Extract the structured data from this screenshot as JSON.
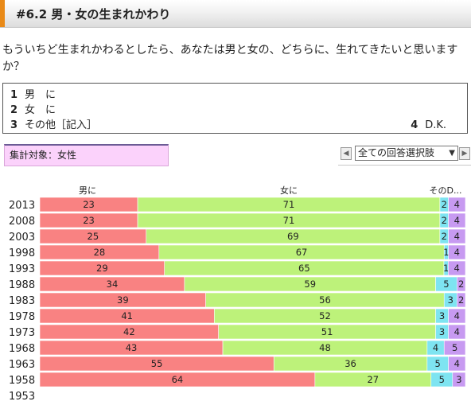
{
  "header": {
    "title": "#6.2 男・女の生まれかわり"
  },
  "question": {
    "text": "もういちど生まれかわるとしたら、あなたは男と女の、どちらに、生れてきたいと思いますか？"
  },
  "options": [
    {
      "num": "1",
      "label": "男　に"
    },
    {
      "num": "2",
      "label": "女　に"
    },
    {
      "num": "3",
      "label": "その他［記入］"
    },
    {
      "num": "4",
      "label": "D.K."
    }
  ],
  "target": {
    "label": "集計対象：女性"
  },
  "selector": {
    "value": "全ての回答選択肢",
    "prev_icon": "arrow-left-icon",
    "next_icon": "arrow-right-icon"
  },
  "colors": {
    "male": "#f98282",
    "female": "#bdf27a",
    "other": "#7ee4f1",
    "dk": "#c79af1",
    "accent": "#e98a18",
    "target_bg": "#fbd2fb"
  },
  "chart_data": {
    "type": "bar",
    "stacked": true,
    "orientation": "horizontal",
    "column_headers": [
      "男に",
      "女に",
      "そのD..."
    ],
    "series_names": [
      "男に",
      "女に",
      "その他",
      "D.K."
    ],
    "rows": [
      {
        "year": "2013",
        "values": [
          23,
          71,
          2,
          4
        ]
      },
      {
        "year": "2008",
        "values": [
          23,
          71,
          2,
          4
        ]
      },
      {
        "year": "2003",
        "values": [
          25,
          69,
          2,
          4
        ]
      },
      {
        "year": "1998",
        "values": [
          28,
          67,
          1,
          4
        ]
      },
      {
        "year": "1993",
        "values": [
          29,
          65,
          1,
          4
        ]
      },
      {
        "year": "1988",
        "values": [
          34,
          59,
          5,
          2
        ]
      },
      {
        "year": "1983",
        "values": [
          39,
          56,
          3,
          2
        ]
      },
      {
        "year": "1978",
        "values": [
          41,
          52,
          3,
          4
        ]
      },
      {
        "year": "1973",
        "values": [
          42,
          51,
          3,
          4
        ]
      },
      {
        "year": "1968",
        "values": [
          43,
          48,
          4,
          5
        ]
      },
      {
        "year": "1963",
        "values": [
          55,
          36,
          5,
          4
        ]
      },
      {
        "year": "1958",
        "values": [
          64,
          27,
          5,
          3
        ]
      },
      {
        "year": "1953",
        "values": []
      }
    ]
  }
}
